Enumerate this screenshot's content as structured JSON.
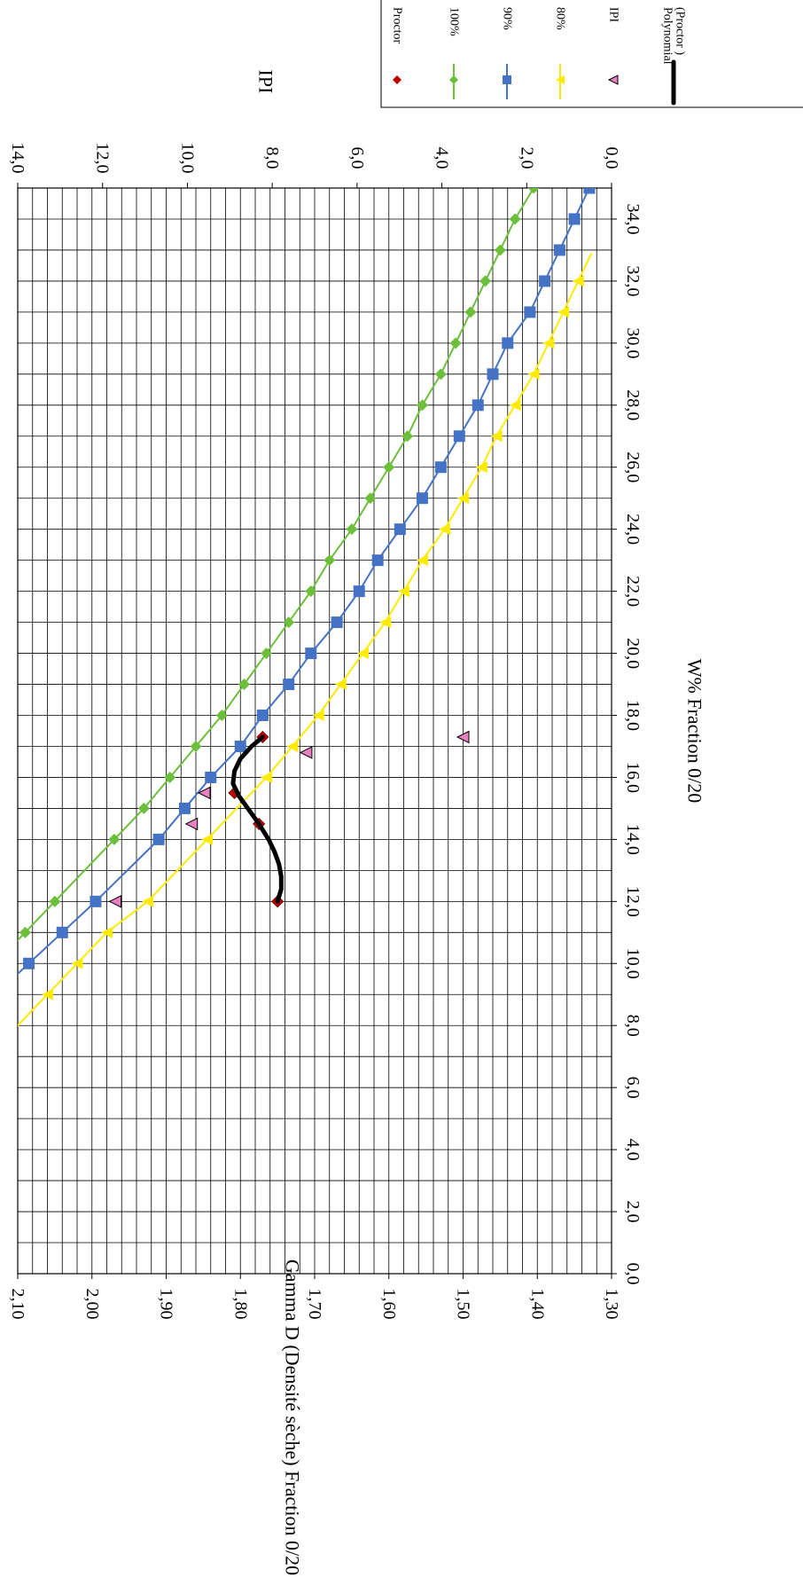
{
  "chart_data": {
    "type": "scatter",
    "orientation": "rotated 90° clockwise",
    "xlabel": "W% Fraction 0/20",
    "ylabel": "Gamma D (Densité sèche) Fraction 0/20",
    "y2label": "IPI",
    "xlim": [
      0,
      35
    ],
    "ylim": [
      1.3,
      2.1
    ],
    "y2lim": [
      0,
      14
    ],
    "x_ticks": [
      "0,0",
      "2,0",
      "4,0",
      "6,0",
      "8,0",
      "10,0",
      "12,0",
      "14,0",
      "16,0",
      "18,0",
      "20,0",
      "22,0",
      "24,0",
      "26,0",
      "28,0",
      "30,0",
      "32,0",
      "34,0"
    ],
    "y_ticks": [
      "1,30",
      "1,40",
      "1,50",
      "1,60",
      "1,70",
      "1,80",
      "1,90",
      "2,00",
      "2,10"
    ],
    "y2_ticks": [
      "0,0",
      "2,0",
      "4,0",
      "6,0",
      "8,0",
      "10,0",
      "12,0",
      "14,0"
    ],
    "grid": true,
    "legend": "top-right",
    "series": [
      {
        "name": "Proctor",
        "marker": "diamond",
        "color": "#c00000",
        "axis": "left",
        "x": [
          12.0,
          14.5,
          15.5,
          17.3
        ],
        "y": [
          1.75,
          1.775,
          1.808,
          1.77
        ]
      },
      {
        "name": "100%",
        "marker": "diamond",
        "color": "#6cbf3a",
        "axis": "left",
        "x": [
          11,
          12,
          14,
          15,
          16,
          17,
          18,
          19,
          20,
          21,
          22,
          23,
          24,
          25,
          26,
          27,
          28,
          29,
          30,
          31,
          32,
          33,
          34,
          35
        ],
        "y": [
          2.09,
          2.05,
          1.97,
          1.93,
          1.895,
          1.86,
          1.825,
          1.795,
          1.765,
          1.735,
          1.705,
          1.68,
          1.65,
          1.625,
          1.6,
          1.575,
          1.555,
          1.53,
          1.51,
          1.49,
          1.47,
          1.45,
          1.43,
          1.405
        ]
      },
      {
        "name": "90%",
        "marker": "square",
        "color": "#4472c4",
        "axis": "left",
        "x": [
          10,
          11,
          12,
          14,
          15,
          16,
          17,
          18,
          19,
          20,
          21,
          22,
          23,
          24,
          25,
          26,
          27,
          28,
          29,
          30,
          31,
          32,
          33,
          34,
          35
        ],
        "y": [
          2.085,
          2.04,
          1.995,
          1.91,
          1.875,
          1.84,
          1.8,
          1.77,
          1.735,
          1.705,
          1.67,
          1.64,
          1.615,
          1.585,
          1.555,
          1.53,
          1.505,
          1.48,
          1.46,
          1.44,
          1.41,
          1.39,
          1.37,
          1.35,
          1.33
        ]
      },
      {
        "name": "80%",
        "marker": "triangle",
        "color": "#ffeb00",
        "axis": "left",
        "x": [
          9,
          10,
          11,
          12,
          14,
          16,
          17,
          18,
          19,
          20,
          21,
          22,
          23,
          24,
          25,
          26,
          27,
          28,
          29,
          30,
          31,
          32
        ],
        "y": [
          2.06,
          2.02,
          1.98,
          1.925,
          1.845,
          1.765,
          1.73,
          1.695,
          1.665,
          1.635,
          1.605,
          1.58,
          1.555,
          1.525,
          1.5,
          1.475,
          1.455,
          1.43,
          1.405,
          1.385,
          1.365,
          1.345
        ]
      },
      {
        "name": "IPI",
        "marker": "triangle",
        "color": "#e87fc0",
        "axis": "right",
        "x": [
          12.0,
          14.5,
          15.5,
          16.8,
          17.3
        ],
        "y": [
          11.7,
          9.9,
          9.6,
          7.2,
          3.5
        ]
      },
      {
        "name": "Polynomial (Proctor )",
        "marker": "line",
        "color": "#000000",
        "axis": "left",
        "x": [
          12.0,
          12.4,
          12.8,
          13.2,
          13.6,
          14.0,
          14.5,
          15.0,
          15.4,
          15.8,
          16.2,
          16.6,
          17.0,
          17.3
        ],
        "y": [
          1.75,
          1.745,
          1.745,
          1.748,
          1.754,
          1.762,
          1.775,
          1.79,
          1.802,
          1.81,
          1.808,
          1.8,
          1.785,
          1.77
        ]
      }
    ]
  }
}
